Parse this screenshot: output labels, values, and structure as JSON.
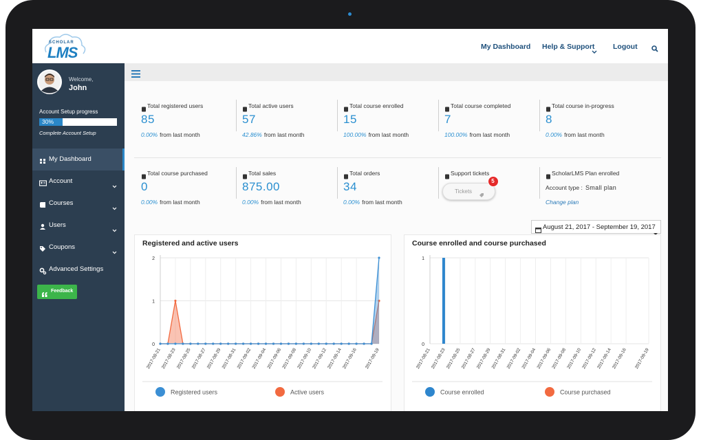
{
  "logo": {
    "small": "SCHOLAR",
    "big": "LMS"
  },
  "nav": [
    "My Dashboard",
    "Help & Support",
    "Logout"
  ],
  "user": {
    "greeting": "Welcome,",
    "name": "John"
  },
  "setup": {
    "label": "Account Setup progress",
    "progress": 30,
    "progress_label": "30%",
    "link": "Complete Account Setup"
  },
  "menu": [
    "My Dashboard",
    "Account",
    "Courses",
    "Users",
    "Coupons",
    "Advanced Settings"
  ],
  "feedback": "Feedback",
  "stats": [
    [
      {
        "label": "Total registered users",
        "value": "85",
        "change": "0.00%",
        "note": "from last month"
      },
      {
        "label": "Total active users",
        "value": "57",
        "change": "42.86%",
        "note": "from last month"
      },
      {
        "label": "Total course enrolled",
        "value": "15",
        "change": "100.00%",
        "note": "from last month"
      },
      {
        "label": "Total course completed",
        "value": "7",
        "change": "100.00%",
        "note": "from last month"
      },
      {
        "label": "Total course in-progress",
        "value": "8",
        "change": "0.00%",
        "note": "from last month"
      }
    ],
    [
      {
        "label": "Total course purchased",
        "value": "0",
        "change": "0.00%",
        "note": "from last month"
      },
      {
        "label": "Total sales",
        "value": "875.00",
        "change": "0.00%",
        "note": "from last month"
      },
      {
        "label": "Total orders",
        "value": "34",
        "change": "0.00%",
        "note": "from last month"
      }
    ]
  ],
  "support": {
    "label": "Support tickets",
    "button": "Tickets",
    "count": "5"
  },
  "plan": {
    "label": "ScholarLMS Plan enrolled",
    "account_type_label": "Account type :",
    "account_type": "Small plan",
    "link": "Change plan"
  },
  "date_range": "August 21, 2017 - September 19, 2017",
  "chart_data": [
    {
      "type": "line",
      "title": "Registered and active users",
      "categories": [
        "2017-08-21",
        null,
        "2017-08-23",
        null,
        "2017-08-25",
        null,
        "2017-08-27",
        null,
        "2017-08-29",
        null,
        "2017-08-31",
        null,
        "2017-09-02",
        null,
        "2017-09-04",
        null,
        "2017-09-06",
        null,
        "2017-09-08",
        null,
        "2017-09-10",
        null,
        "2017-09-12",
        null,
        "2017-09-14",
        null,
        "2017-09-16",
        null,
        null,
        "2017-09-19"
      ],
      "series": [
        {
          "name": "Registered users",
          "color": "#3b8fd4",
          "values": [
            0,
            0,
            0,
            0,
            0,
            0,
            0,
            0,
            0,
            0,
            0,
            0,
            0,
            0,
            0,
            0,
            0,
            0,
            0,
            0,
            0,
            0,
            0,
            0,
            0,
            0,
            0,
            0,
            0,
            2
          ]
        },
        {
          "name": "Active users",
          "color": "#f26a40",
          "values": [
            0,
            0,
            1,
            0,
            0,
            0,
            0,
            0,
            0,
            0,
            0,
            0,
            0,
            0,
            0,
            0,
            0,
            0,
            0,
            0,
            0,
            0,
            0,
            0,
            0,
            0,
            0,
            0,
            0,
            1
          ]
        }
      ],
      "ylim": [
        0,
        2
      ],
      "yticks": [
        0,
        1,
        2
      ],
      "grid": true
    },
    {
      "type": "bar",
      "title": "Course enrolled and course purchased",
      "categories": [
        "2017-08-21",
        null,
        "2017-08-23",
        null,
        "2017-08-25",
        null,
        "2017-08-27",
        null,
        "2017-08-29",
        null,
        "2017-08-31",
        null,
        "2017-09-02",
        null,
        "2017-09-04",
        null,
        "2017-09-06",
        null,
        "2017-09-08",
        null,
        "2017-09-10",
        null,
        "2017-09-12",
        null,
        "2017-09-14",
        null,
        "2017-09-16",
        null,
        null,
        "2017-09-19"
      ],
      "series": [
        {
          "name": "Course enrolled",
          "color": "#2e86cd",
          "values": [
            0,
            0,
            1,
            0,
            0,
            0,
            0,
            0,
            0,
            0,
            0,
            0,
            0,
            0,
            0,
            0,
            0,
            0,
            0,
            0,
            0,
            0,
            0,
            0,
            0,
            0,
            0,
            0,
            0,
            0
          ]
        },
        {
          "name": "Course purchased",
          "color": "#f26a40",
          "values": [
            0,
            0,
            0,
            0,
            0,
            0,
            0,
            0,
            0,
            0,
            0,
            0,
            0,
            0,
            0,
            0,
            0,
            0,
            0,
            0,
            0,
            0,
            0,
            0,
            0,
            0,
            0,
            0,
            0,
            0
          ]
        }
      ],
      "ylim": [
        0,
        1
      ],
      "yticks": [
        0,
        1
      ],
      "grid": true
    }
  ]
}
